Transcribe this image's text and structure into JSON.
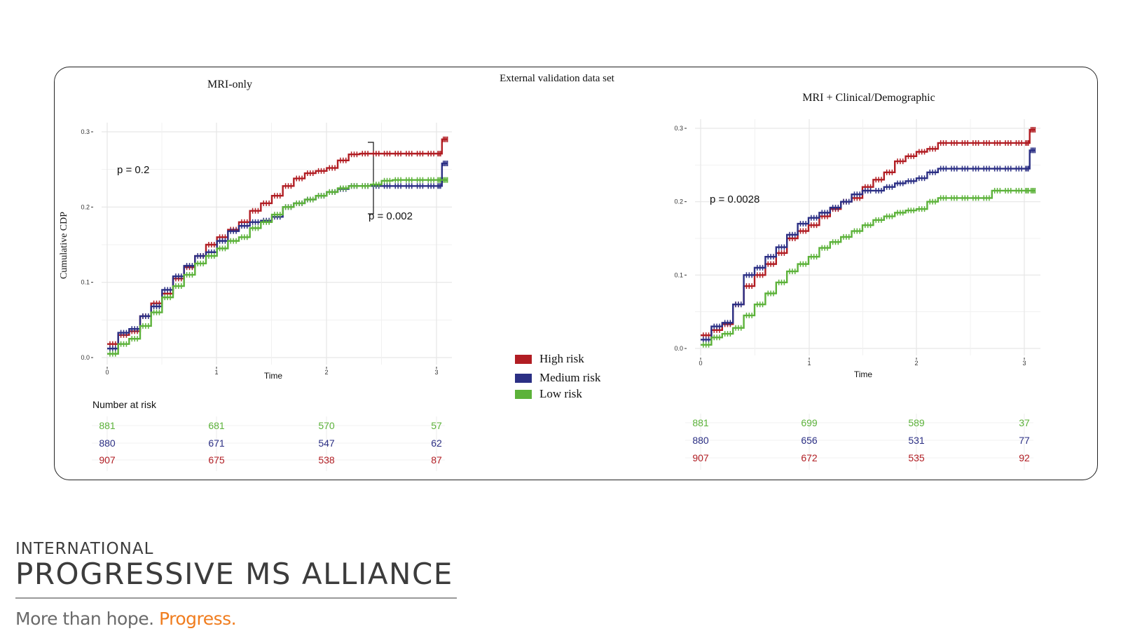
{
  "colors": {
    "high": "#b11d23",
    "medium": "#2b2f84",
    "low": "#5cb23a",
    "grid": "#e6e6e6",
    "text": "#111111"
  },
  "figure": {
    "title": "External validation data set"
  },
  "legend": {
    "items": [
      {
        "label": "High risk",
        "color": "#b11d23"
      },
      {
        "label": "Medium risk",
        "color": "#2b2f84"
      },
      {
        "label": "Low risk",
        "color": "#5cb23a"
      }
    ]
  },
  "chart_data": [
    {
      "type": "line",
      "title": "MRI-only",
      "xlabel": "Time",
      "ylabel": "Cumulative CDP",
      "xlim": [
        0,
        3.1
      ],
      "ylim": [
        0,
        0.3
      ],
      "xticks": [
        "0",
        "1",
        "2",
        "3"
      ],
      "yticks": [
        "0.0",
        "0.1",
        "0.2",
        "0.3"
      ],
      "grid": true,
      "annotations": [
        "p = 0.2",
        "p = 0.002"
      ],
      "series": [
        {
          "name": "High risk",
          "color": "#b11d23",
          "x": [
            0,
            0.1,
            0.2,
            0.3,
            0.4,
            0.5,
            0.6,
            0.7,
            0.8,
            0.9,
            1.0,
            1.1,
            1.2,
            1.3,
            1.4,
            1.5,
            1.6,
            1.7,
            1.8,
            1.9,
            2.0,
            2.1,
            2.2,
            2.3,
            2.4,
            2.5,
            2.6,
            2.7,
            2.8,
            2.9,
            3.0,
            3.05,
            3.1
          ],
          "y": [
            0.018,
            0.03,
            0.035,
            0.055,
            0.072,
            0.085,
            0.105,
            0.12,
            0.135,
            0.15,
            0.16,
            0.17,
            0.18,
            0.195,
            0.205,
            0.215,
            0.228,
            0.238,
            0.245,
            0.248,
            0.252,
            0.262,
            0.27,
            0.271,
            0.271,
            0.271,
            0.271,
            0.271,
            0.271,
            0.271,
            0.271,
            0.29,
            0.29
          ]
        },
        {
          "name": "Medium risk",
          "color": "#2b2f84",
          "x": [
            0,
            0.1,
            0.2,
            0.3,
            0.4,
            0.5,
            0.6,
            0.7,
            0.8,
            0.9,
            1.0,
            1.1,
            1.2,
            1.3,
            1.4,
            1.5,
            1.6,
            1.7,
            1.8,
            1.9,
            2.0,
            2.1,
            2.2,
            2.3,
            2.4,
            2.5,
            2.6,
            2.7,
            2.8,
            2.9,
            3.0,
            3.05,
            3.1
          ],
          "y": [
            0.012,
            0.033,
            0.038,
            0.055,
            0.068,
            0.09,
            0.108,
            0.122,
            0.135,
            0.14,
            0.155,
            0.168,
            0.175,
            0.18,
            0.182,
            0.187,
            0.2,
            0.205,
            0.21,
            0.215,
            0.22,
            0.224,
            0.228,
            0.228,
            0.228,
            0.228,
            0.228,
            0.228,
            0.228,
            0.228,
            0.228,
            0.258,
            0.258
          ]
        },
        {
          "name": "Low risk",
          "color": "#5cb23a",
          "x": [
            0,
            0.1,
            0.2,
            0.3,
            0.4,
            0.5,
            0.6,
            0.7,
            0.8,
            0.9,
            1.0,
            1.1,
            1.2,
            1.3,
            1.4,
            1.5,
            1.6,
            1.7,
            1.8,
            1.9,
            2.0,
            2.1,
            2.2,
            2.3,
            2.4,
            2.5,
            2.6,
            2.7,
            2.8,
            2.9,
            3.0,
            3.05,
            3.1
          ],
          "y": [
            0.005,
            0.018,
            0.025,
            0.042,
            0.06,
            0.08,
            0.095,
            0.11,
            0.125,
            0.135,
            0.145,
            0.155,
            0.16,
            0.172,
            0.18,
            0.19,
            0.2,
            0.205,
            0.21,
            0.215,
            0.22,
            0.225,
            0.228,
            0.228,
            0.23,
            0.235,
            0.236,
            0.236,
            0.236,
            0.236,
            0.236,
            0.236,
            0.236
          ]
        }
      ],
      "risk_table": {
        "title": "Number at risk",
        "times": [
          0,
          1,
          2,
          3
        ],
        "rows": [
          {
            "group": "Low risk",
            "color": "#5cb23a",
            "values": [
              "881",
              "681",
              "570",
              "57"
            ]
          },
          {
            "group": "Medium risk",
            "color": "#2b2f84",
            "values": [
              "880",
              "671",
              "547",
              "62"
            ]
          },
          {
            "group": "High risk",
            "color": "#b11d23",
            "values": [
              "907",
              "675",
              "538",
              "87"
            ]
          }
        ]
      }
    },
    {
      "type": "line",
      "title": "MRI + Clinical/Demographic",
      "xlabel": "Time",
      "ylabel": "",
      "xlim": [
        0,
        3.1
      ],
      "ylim": [
        0,
        0.3
      ],
      "xticks": [
        "0",
        "1",
        "2",
        "3"
      ],
      "yticks": [
        "0.0",
        "0.1",
        "0.2",
        "0.3"
      ],
      "grid": true,
      "annotations": [
        "p = 0.0028"
      ],
      "series": [
        {
          "name": "High risk",
          "color": "#b11d23",
          "x": [
            0,
            0.1,
            0.2,
            0.3,
            0.4,
            0.5,
            0.6,
            0.7,
            0.8,
            0.9,
            1.0,
            1.1,
            1.2,
            1.3,
            1.4,
            1.5,
            1.6,
            1.7,
            1.8,
            1.9,
            2.0,
            2.1,
            2.2,
            2.3,
            2.4,
            2.5,
            2.6,
            2.7,
            2.8,
            2.9,
            3.0,
            3.05,
            3.1
          ],
          "y": [
            0.018,
            0.025,
            0.033,
            0.06,
            0.085,
            0.1,
            0.115,
            0.13,
            0.15,
            0.16,
            0.168,
            0.18,
            0.19,
            0.2,
            0.205,
            0.22,
            0.23,
            0.24,
            0.255,
            0.262,
            0.268,
            0.272,
            0.28,
            0.28,
            0.28,
            0.28,
            0.28,
            0.28,
            0.28,
            0.28,
            0.28,
            0.298,
            0.298
          ]
        },
        {
          "name": "Medium risk",
          "color": "#2b2f84",
          "x": [
            0,
            0.1,
            0.2,
            0.3,
            0.4,
            0.5,
            0.6,
            0.7,
            0.8,
            0.9,
            1.0,
            1.1,
            1.2,
            1.3,
            1.4,
            1.5,
            1.6,
            1.7,
            1.8,
            1.9,
            2.0,
            2.1,
            2.2,
            2.3,
            2.4,
            2.5,
            2.6,
            2.7,
            2.8,
            2.9,
            3.0,
            3.05,
            3.1
          ],
          "y": [
            0.012,
            0.03,
            0.035,
            0.06,
            0.1,
            0.11,
            0.125,
            0.138,
            0.155,
            0.17,
            0.178,
            0.185,
            0.192,
            0.2,
            0.21,
            0.215,
            0.215,
            0.22,
            0.225,
            0.228,
            0.232,
            0.24,
            0.245,
            0.245,
            0.245,
            0.245,
            0.245,
            0.245,
            0.245,
            0.245,
            0.245,
            0.27,
            0.27
          ]
        },
        {
          "name": "Low risk",
          "color": "#5cb23a",
          "x": [
            0,
            0.1,
            0.2,
            0.3,
            0.4,
            0.5,
            0.6,
            0.7,
            0.8,
            0.9,
            1.0,
            1.1,
            1.2,
            1.3,
            1.4,
            1.5,
            1.6,
            1.7,
            1.8,
            1.9,
            2.0,
            2.1,
            2.2,
            2.3,
            2.4,
            2.5,
            2.6,
            2.7,
            2.8,
            2.9,
            3.0,
            3.05,
            3.1
          ],
          "y": [
            0.005,
            0.015,
            0.02,
            0.028,
            0.045,
            0.06,
            0.075,
            0.09,
            0.105,
            0.115,
            0.125,
            0.137,
            0.145,
            0.152,
            0.16,
            0.168,
            0.175,
            0.18,
            0.185,
            0.188,
            0.19,
            0.2,
            0.205,
            0.205,
            0.205,
            0.205,
            0.205,
            0.215,
            0.215,
            0.215,
            0.215,
            0.215,
            0.215
          ]
        }
      ],
      "risk_table": {
        "title": "",
        "times": [
          0,
          1,
          2,
          3
        ],
        "rows": [
          {
            "group": "Low risk",
            "color": "#5cb23a",
            "values": [
              "881",
              "699",
              "589",
              "37"
            ]
          },
          {
            "group": "Medium risk",
            "color": "#2b2f84",
            "values": [
              "880",
              "656",
              "531",
              "77"
            ]
          },
          {
            "group": "High risk",
            "color": "#b11d23",
            "values": [
              "907",
              "672",
              "535",
              "92"
            ]
          }
        ]
      }
    }
  ],
  "logo": {
    "line1": "INTERNATIONAL",
    "line2": "PROGRESSIVE MS ALLIANCE",
    "tagline_grey": "More than hope.",
    "tagline_orange": "Progress."
  }
}
